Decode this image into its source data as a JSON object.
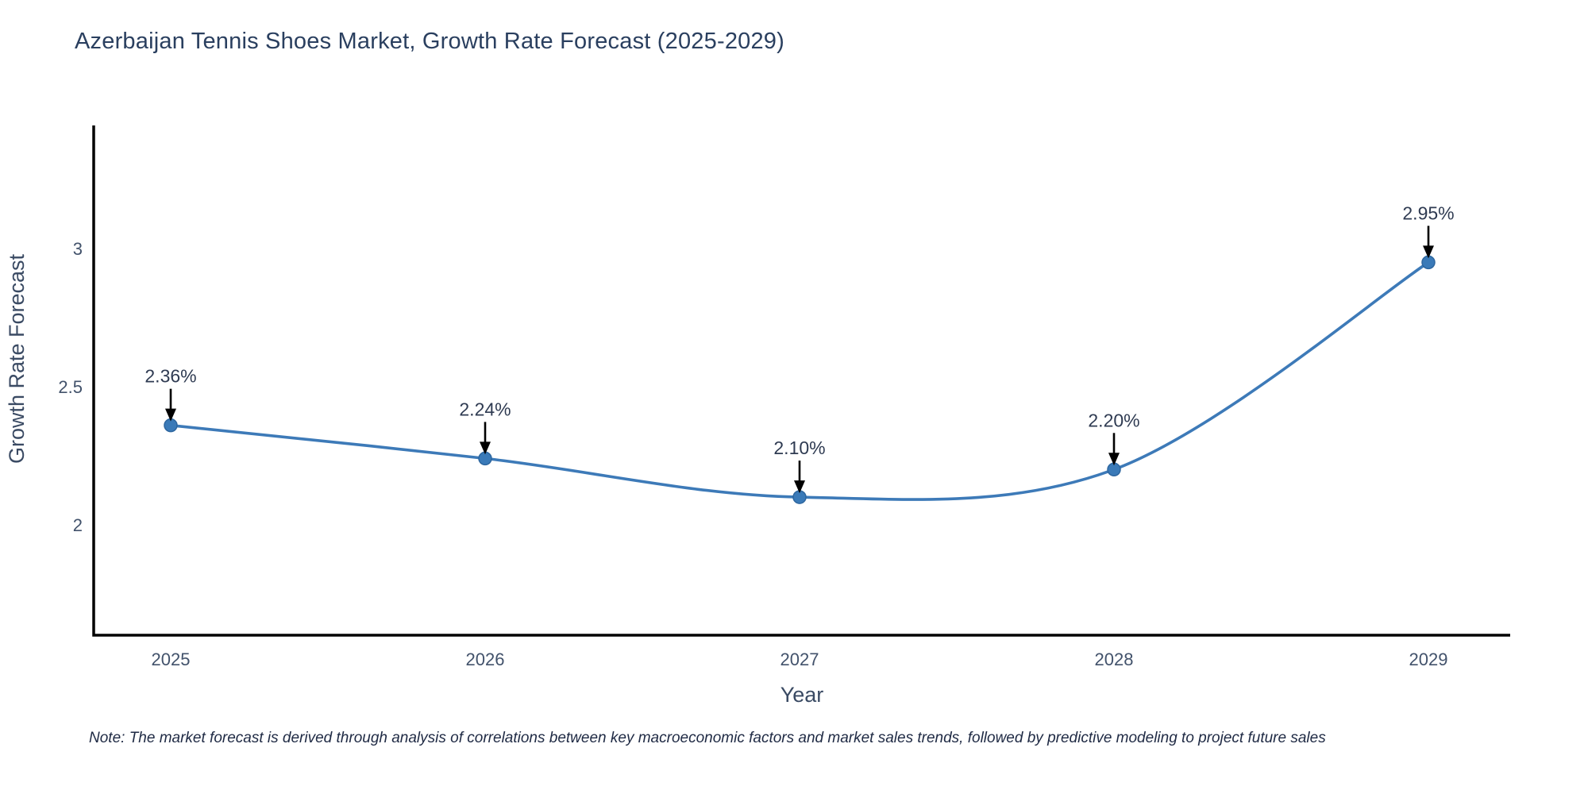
{
  "title": "Azerbaijan Tennis Shoes Market, Growth Rate Forecast (2025-2029)",
  "note": "Note: The market forecast is derived through analysis of correlations between key macroeconomic factors and market sales trends, followed by predictive modeling to project future sales",
  "chart_data": {
    "type": "line",
    "title": "Azerbaijan Tennis Shoes Market, Growth Rate Forecast (2025-2029)",
    "categories": [
      "2025",
      "2026",
      "2027",
      "2028",
      "2029"
    ],
    "series": [
      {
        "name": "Growth Rate Forecast",
        "values": [
          2.36,
          2.24,
          2.1,
          2.2,
          2.95
        ]
      }
    ],
    "point_labels": [
      "2.36%",
      "2.24%",
      "2.10%",
      "2.20%",
      "2.95%"
    ],
    "xlabel": "Year",
    "ylabel": "Growth Rate Forecast",
    "yticks": [
      2,
      2.5,
      3
    ],
    "ytick_labels": [
      "2",
      "2.5",
      "3"
    ],
    "ylim": [
      1.6,
      3.44
    ],
    "grid": false,
    "legend": false,
    "curve": "spline",
    "colors": {
      "line": "#3d7ab8",
      "marker_fill": "#3a7ab8",
      "marker_stroke": "#2d669f",
      "annotation_arrow": "#000000",
      "axis_spine": "#000000",
      "tick_label": "#42526b",
      "axis_title": "#3a4a63",
      "title_text": "#2a3f5f",
      "background": "#ffffff"
    }
  }
}
